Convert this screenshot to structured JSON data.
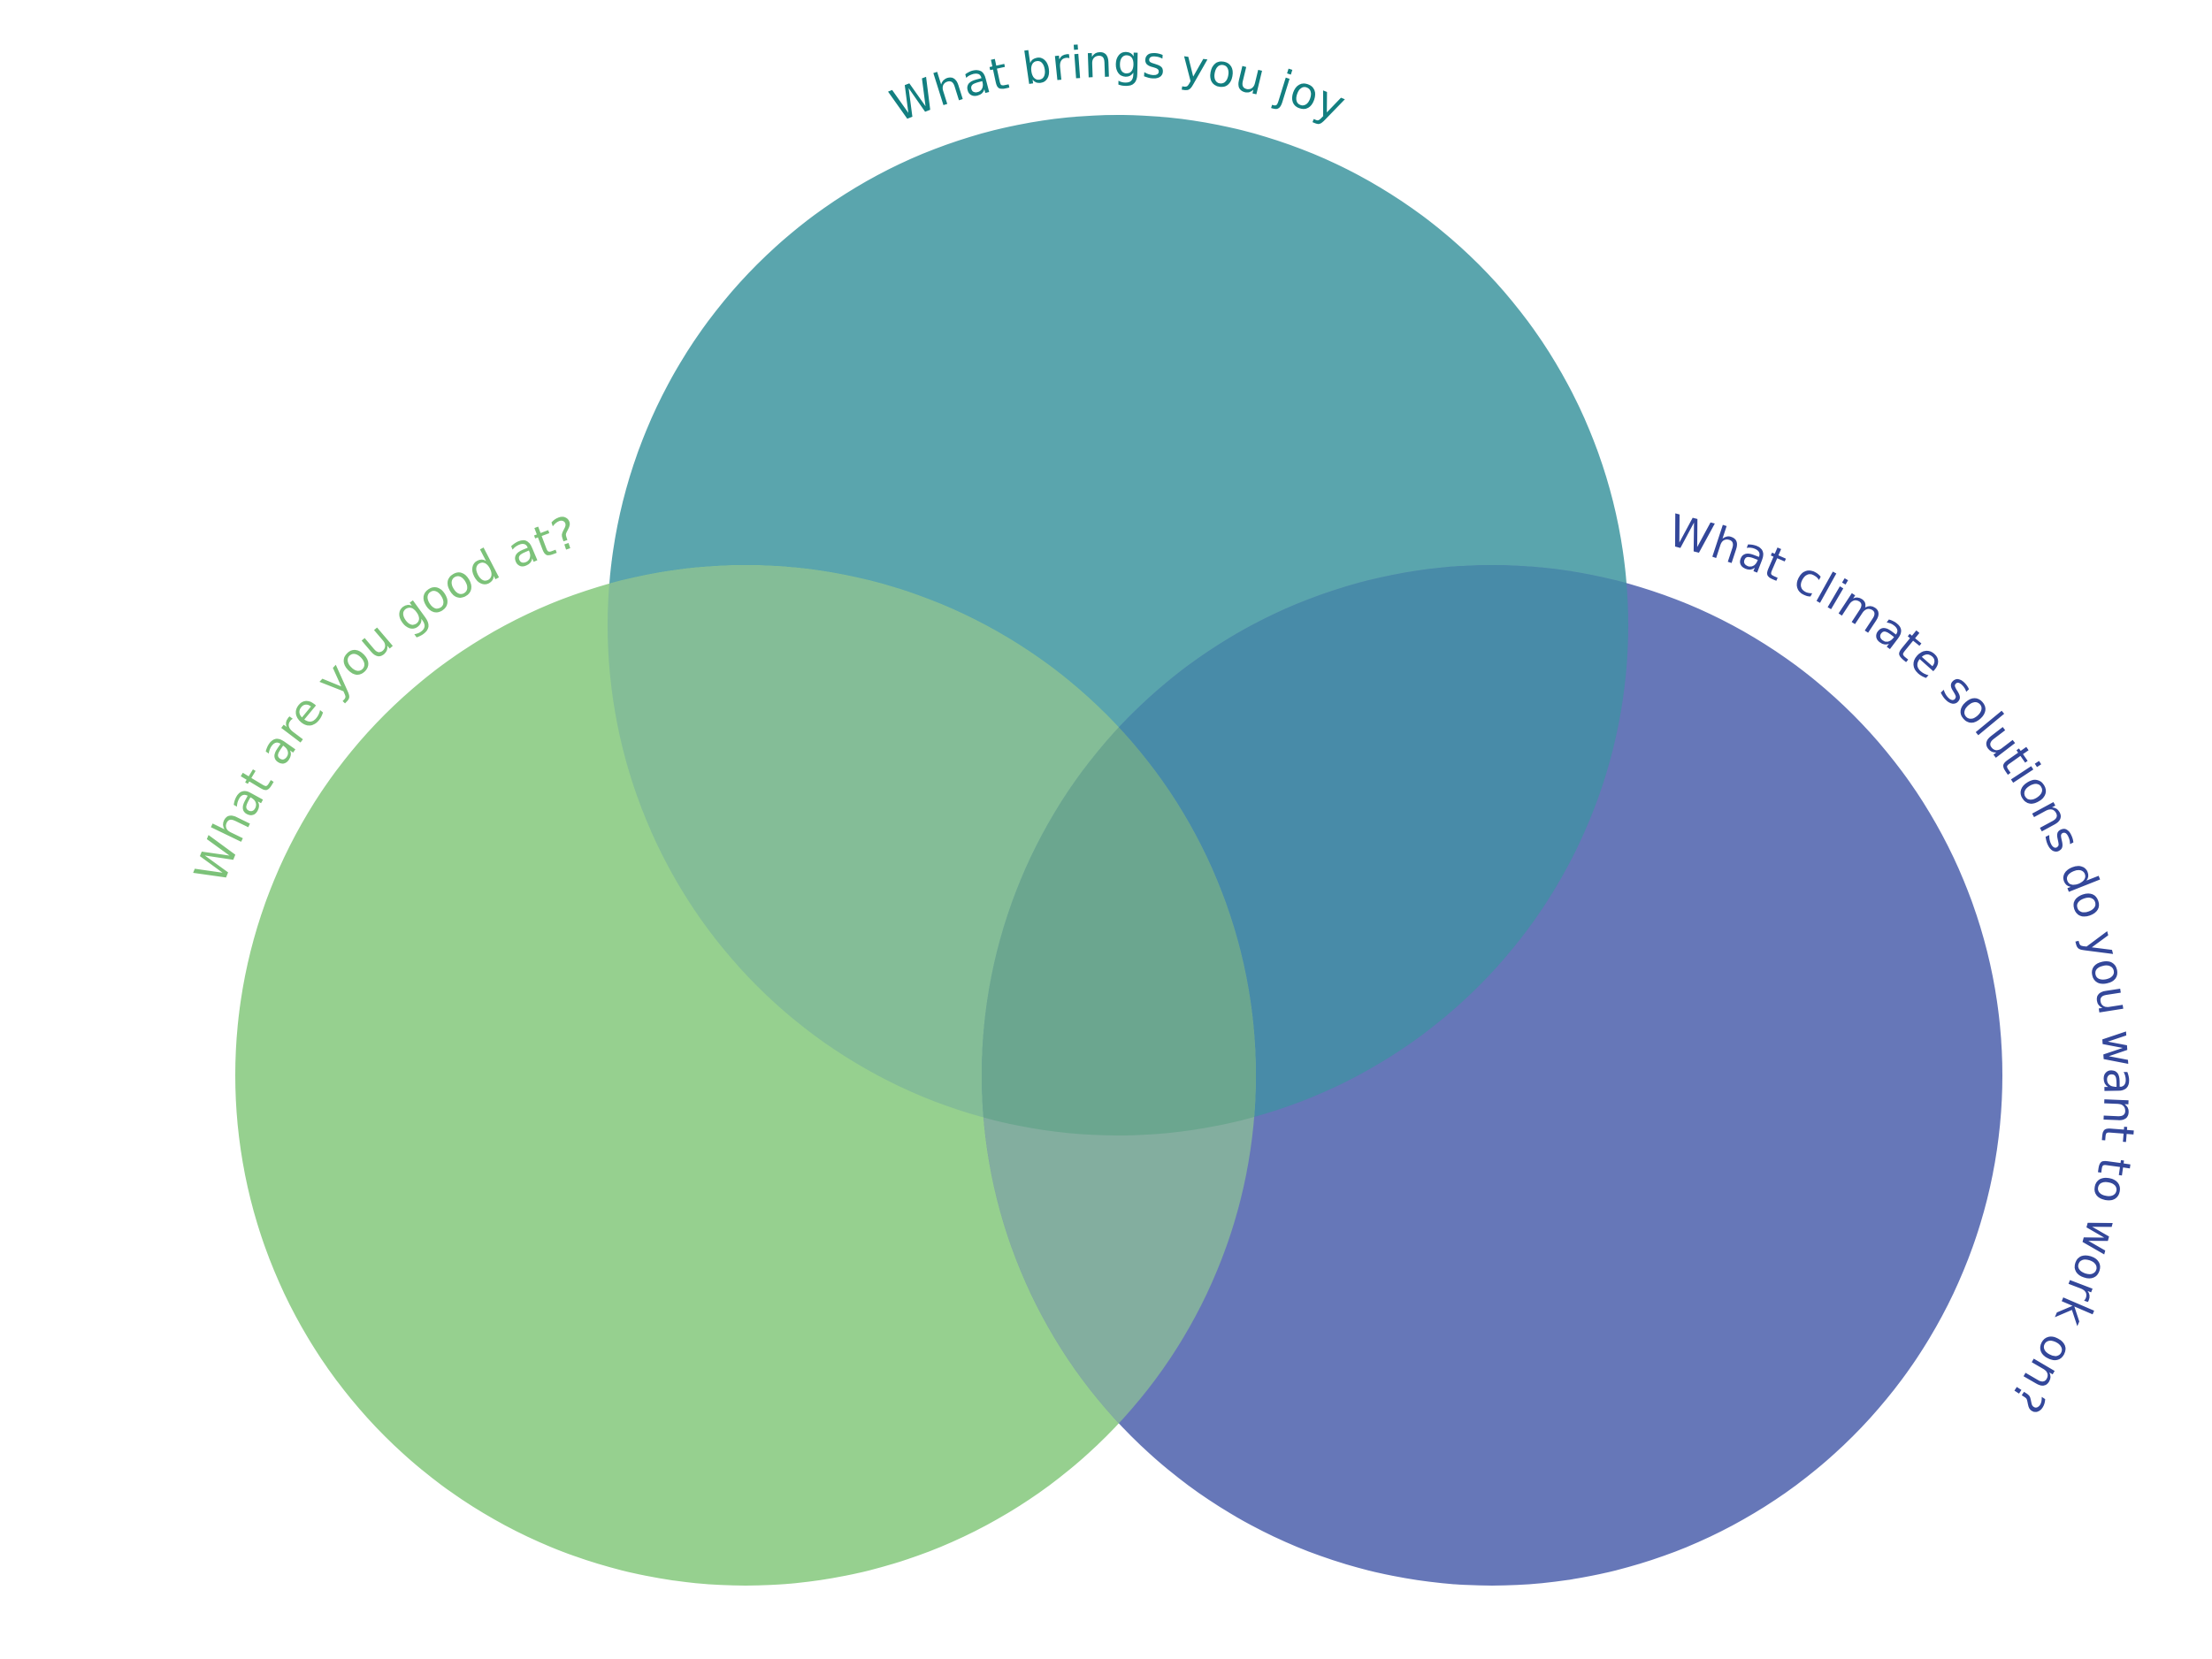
{
  "diagram": {
    "type": "venn",
    "circles": [
      {
        "id": "joy",
        "label": "What brings you joy",
        "fill": "#5aa5ad",
        "label_color": "#137f80"
      },
      {
        "id": "good",
        "label": "What are you good at?",
        "fill": "#96d08f",
        "label_color": "#7cc279"
      },
      {
        "id": "climate",
        "label": "What climate solutions do you want to work on?",
        "fill": "#6677b8",
        "label_color": "#33479a"
      }
    ],
    "overlap_colors": {
      "joy_good": "#84bd97",
      "joy_climate": "#488ba8",
      "good_climate": "#83ae9f",
      "all_three": "#6ba68f"
    }
  }
}
